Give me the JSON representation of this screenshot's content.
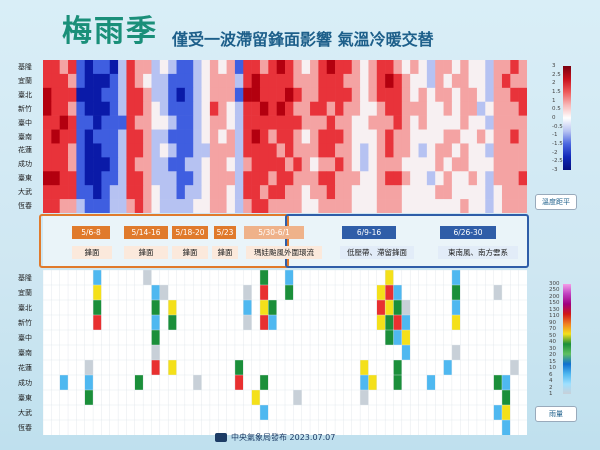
{
  "title": {
    "main": "梅雨季",
    "sub": "僅受一波滯留鋒面影響 氣溫冷暖交替"
  },
  "stations": [
    "基隆",
    "宜蘭",
    "臺北",
    "新竹",
    "臺中",
    "臺南",
    "花蓮",
    "成功",
    "臺東",
    "大武",
    "恆春"
  ],
  "legends": {
    "temp": {
      "label": "溫度距平",
      "ticks": [
        "3",
        "2.5",
        "2",
        "1.5",
        "1",
        "0.5",
        "0",
        "-0.5",
        "-1",
        "-1.5",
        "-2",
        "-2.5",
        "-3"
      ]
    },
    "rain": {
      "label": "雨量",
      "ticks": [
        "300",
        "250",
        "200",
        "150",
        "130",
        "110",
        "90",
        "70",
        "50",
        "40",
        "30",
        "20",
        "15",
        "10",
        "6",
        "4",
        "2",
        "1"
      ]
    }
  },
  "periods": [
    {
      "date": "5/6-8",
      "desc": "鋒面",
      "group": "orange"
    },
    {
      "date": "5/14-16",
      "desc": "鋒面",
      "group": "orange"
    },
    {
      "date": "5/18-20",
      "desc": "鋒面",
      "group": "orange"
    },
    {
      "date": "5/23",
      "desc": "鋒面",
      "group": "orange"
    },
    {
      "date": "5/30-6/1",
      "desc": "瑪娃颱風外圍環流",
      "group": "orange-light"
    },
    {
      "date": "6/9-16",
      "desc": "低壓帶、滯留鋒面",
      "group": "blue"
    },
    {
      "date": "6/26-30",
      "desc": "東南風、南方雲系",
      "group": "blue"
    }
  ],
  "footer": "中央氣象局發布 2023.07.07",
  "colors": {
    "warm": "#d7191c",
    "cold": "#1431c8",
    "orange": "#e07a2c",
    "blue": "#2f5da8",
    "title": "#1a8f79"
  },
  "chart_data": [
    {
      "type": "heatmap",
      "title": "溫度距平",
      "rows": [
        "基隆",
        "宜蘭",
        "臺北",
        "新竹",
        "臺中",
        "臺南",
        "花蓮",
        "成功",
        "臺東",
        "大武",
        "恆春"
      ],
      "columns_note": "daily cells May–June",
      "column_count": 58,
      "value_range": [
        -3,
        3
      ],
      "pattern": [
        [
          2,
          2,
          1,
          2,
          -2,
          -3,
          -2,
          -2,
          -3,
          -1,
          2,
          1,
          1,
          -1,
          0,
          -1,
          -2,
          -2,
          -1,
          0,
          1,
          0,
          1,
          -2,
          2,
          2,
          1,
          2,
          3,
          2,
          1,
          0,
          1,
          2,
          3,
          2,
          2,
          1,
          0,
          1,
          2,
          2,
          1,
          0,
          1,
          0,
          -1,
          1,
          1,
          0,
          1,
          0,
          0,
          -1,
          1,
          1,
          2,
          1
        ],
        [
          2,
          2,
          2,
          1,
          -2,
          -3,
          -3,
          -3,
          -2,
          -1,
          2,
          1,
          0,
          -1,
          -1,
          -2,
          -2,
          -2,
          -1,
          0,
          1,
          1,
          1,
          -1,
          2,
          3,
          2,
          2,
          2,
          2,
          1,
          1,
          1,
          2,
          2,
          2,
          1,
          1,
          0,
          1,
          2,
          3,
          2,
          1,
          0,
          0,
          -1,
          1,
          0,
          1,
          1,
          0,
          0,
          -1,
          1,
          2,
          1,
          1
        ],
        [
          3,
          2,
          2,
          2,
          -3,
          -3,
          -3,
          -2,
          -2,
          -1,
          2,
          2,
          1,
          -1,
          -1,
          -2,
          -3,
          -2,
          -1,
          0,
          1,
          1,
          1,
          -2,
          3,
          3,
          2,
          2,
          2,
          3,
          2,
          1,
          1,
          2,
          2,
          2,
          2,
          1,
          0,
          1,
          2,
          2,
          2,
          1,
          0,
          1,
          0,
          1,
          1,
          0,
          1,
          1,
          0,
          -1,
          1,
          1,
          2,
          2
        ],
        [
          3,
          2,
          2,
          1,
          -2,
          -3,
          -3,
          -3,
          -2,
          -1,
          2,
          2,
          1,
          0,
          -1,
          -2,
          -2,
          -2,
          -1,
          0,
          2,
          1,
          0,
          -1,
          2,
          2,
          3,
          2,
          3,
          2,
          1,
          1,
          2,
          2,
          1,
          2,
          1,
          1,
          0,
          0,
          1,
          2,
          2,
          1,
          1,
          1,
          0,
          0,
          1,
          0,
          1,
          1,
          -1,
          0,
          1,
          1,
          1,
          2
        ],
        [
          2,
          2,
          3,
          2,
          -2,
          -2,
          -3,
          -2,
          -2,
          -2,
          2,
          1,
          1,
          0,
          0,
          -1,
          -2,
          -2,
          -1,
          0,
          1,
          1,
          0,
          -1,
          2,
          2,
          2,
          2,
          2,
          2,
          2,
          1,
          1,
          1,
          2,
          1,
          1,
          0,
          0,
          1,
          1,
          1,
          2,
          1,
          0,
          1,
          0,
          0,
          0,
          0,
          1,
          0,
          0,
          -1,
          1,
          1,
          1,
          1
        ],
        [
          2,
          3,
          2,
          2,
          -2,
          -3,
          -2,
          -2,
          -2,
          -1,
          2,
          2,
          1,
          -1,
          -1,
          -2,
          -2,
          -2,
          -1,
          0,
          1,
          0,
          1,
          -1,
          2,
          3,
          2,
          1,
          2,
          2,
          1,
          0,
          1,
          2,
          2,
          2,
          1,
          0,
          0,
          0,
          1,
          2,
          1,
          1,
          0,
          0,
          0,
          0,
          1,
          1,
          0,
          0,
          1,
          0,
          1,
          1,
          2,
          1
        ],
        [
          2,
          2,
          2,
          1,
          -2,
          -3,
          -3,
          -2,
          -2,
          -1,
          2,
          2,
          1,
          -1,
          0,
          -1,
          -2,
          -2,
          -1,
          -1,
          1,
          1,
          1,
          -1,
          2,
          2,
          2,
          2,
          1,
          2,
          1,
          1,
          1,
          2,
          2,
          1,
          1,
          0,
          -1,
          0,
          1,
          2,
          1,
          1,
          0,
          -1,
          0,
          1,
          1,
          0,
          1,
          0,
          0,
          -1,
          1,
          1,
          1,
          1
        ],
        [
          2,
          2,
          2,
          1,
          -2,
          -3,
          -3,
          -3,
          -2,
          -1,
          2,
          1,
          1,
          -1,
          -1,
          -2,
          -2,
          -1,
          -1,
          0,
          1,
          1,
          0,
          -1,
          1,
          2,
          2,
          2,
          2,
          1,
          2,
          1,
          0,
          1,
          1,
          2,
          1,
          0,
          -1,
          0,
          1,
          1,
          1,
          0,
          0,
          0,
          0,
          1,
          0,
          1,
          1,
          0,
          0,
          0,
          1,
          1,
          1,
          1
        ],
        [
          3,
          3,
          2,
          2,
          -2,
          -3,
          -3,
          -2,
          -2,
          -1,
          2,
          2,
          1,
          -1,
          -1,
          -1,
          -2,
          -2,
          -1,
          0,
          1,
          1,
          1,
          -1,
          2,
          2,
          2,
          1,
          2,
          2,
          1,
          1,
          1,
          2,
          2,
          1,
          1,
          1,
          0,
          0,
          1,
          2,
          2,
          1,
          0,
          0,
          -1,
          0,
          1,
          0,
          0,
          1,
          0,
          -1,
          1,
          1,
          1,
          2
        ],
        [
          2,
          2,
          2,
          2,
          -2,
          -2,
          -3,
          -2,
          -1,
          -1,
          2,
          2,
          1,
          0,
          -1,
          -1,
          -2,
          -1,
          -1,
          0,
          1,
          1,
          0,
          -1,
          2,
          2,
          1,
          2,
          2,
          1,
          1,
          0,
          1,
          1,
          2,
          1,
          1,
          0,
          0,
          0,
          1,
          1,
          1,
          0,
          0,
          0,
          0,
          1,
          1,
          0,
          0,
          0,
          0,
          -1,
          0,
          1,
          1,
          1
        ],
        [
          2,
          2,
          1,
          1,
          -1,
          -2,
          -2,
          -2,
          -1,
          -1,
          1,
          2,
          1,
          0,
          -1,
          -1,
          -1,
          -1,
          0,
          0,
          1,
          1,
          0,
          -1,
          1,
          2,
          2,
          1,
          1,
          1,
          1,
          0,
          0,
          1,
          1,
          1,
          1,
          0,
          0,
          0,
          1,
          1,
          1,
          0,
          0,
          0,
          0,
          0,
          0,
          0,
          1,
          0,
          0,
          -1,
          0,
          1,
          1,
          1
        ]
      ]
    },
    {
      "type": "heatmap",
      "title": "雨量",
      "rows": [
        "基隆",
        "宜蘭",
        "臺北",
        "新竹",
        "臺中",
        "臺南",
        "花蓮",
        "成功",
        "臺東",
        "大武",
        "恆春"
      ],
      "column_count": 58,
      "value_range": [
        0,
        300
      ],
      "pattern_note": "rain categories per cell (0 = none)",
      "pattern": [
        [
          0,
          0,
          0,
          0,
          0,
          0,
          3,
          0,
          0,
          0,
          0,
          0,
          2,
          0,
          0,
          0,
          0,
          0,
          0,
          0,
          0,
          0,
          0,
          0,
          0,
          0,
          4,
          0,
          0,
          3,
          0,
          0,
          0,
          0,
          0,
          0,
          0,
          0,
          0,
          0,
          0,
          5,
          0,
          0,
          0,
          0,
          0,
          0,
          0,
          3,
          0,
          0,
          0,
          0,
          0,
          0,
          0,
          0
        ],
        [
          0,
          0,
          0,
          0,
          0,
          0,
          5,
          0,
          0,
          0,
          0,
          0,
          0,
          3,
          2,
          0,
          0,
          0,
          0,
          0,
          0,
          0,
          0,
          0,
          2,
          0,
          6,
          0,
          0,
          4,
          0,
          0,
          0,
          0,
          0,
          0,
          0,
          0,
          0,
          0,
          5,
          6,
          3,
          0,
          0,
          0,
          0,
          0,
          0,
          4,
          0,
          0,
          0,
          0,
          2,
          0,
          0,
          0
        ],
        [
          0,
          0,
          0,
          0,
          0,
          0,
          4,
          0,
          0,
          0,
          0,
          0,
          0,
          4,
          0,
          5,
          0,
          0,
          0,
          0,
          0,
          0,
          0,
          0,
          3,
          0,
          5,
          4,
          0,
          0,
          0,
          0,
          0,
          0,
          0,
          0,
          0,
          0,
          0,
          0,
          6,
          5,
          4,
          2,
          0,
          0,
          0,
          0,
          0,
          3,
          0,
          0,
          0,
          0,
          0,
          0,
          0,
          0
        ],
        [
          0,
          0,
          0,
          0,
          0,
          0,
          6,
          0,
          0,
          0,
          0,
          0,
          0,
          3,
          0,
          4,
          0,
          0,
          0,
          0,
          0,
          0,
          0,
          0,
          2,
          0,
          6,
          3,
          0,
          0,
          0,
          0,
          0,
          0,
          0,
          0,
          0,
          0,
          0,
          0,
          5,
          4,
          6,
          3,
          0,
          0,
          0,
          0,
          0,
          5,
          0,
          0,
          0,
          0,
          0,
          0,
          0,
          0
        ],
        [
          0,
          0,
          0,
          0,
          0,
          0,
          0,
          0,
          0,
          0,
          0,
          0,
          0,
          4,
          0,
          0,
          0,
          0,
          0,
          0,
          0,
          0,
          0,
          0,
          0,
          0,
          0,
          0,
          0,
          0,
          0,
          0,
          0,
          0,
          0,
          0,
          0,
          0,
          0,
          0,
          0,
          4,
          3,
          5,
          0,
          0,
          0,
          0,
          0,
          0,
          0,
          0,
          0,
          0,
          0,
          0,
          0,
          0
        ],
        [
          0,
          0,
          0,
          0,
          0,
          0,
          0,
          0,
          0,
          0,
          0,
          0,
          0,
          2,
          0,
          0,
          0,
          0,
          0,
          0,
          0,
          0,
          0,
          0,
          0,
          0,
          0,
          0,
          0,
          0,
          0,
          0,
          0,
          0,
          0,
          0,
          0,
          0,
          0,
          0,
          0,
          0,
          0,
          3,
          0,
          0,
          0,
          0,
          0,
          2,
          0,
          0,
          0,
          0,
          0,
          0,
          0,
          0
        ],
        [
          0,
          0,
          0,
          0,
          0,
          2,
          0,
          0,
          0,
          0,
          0,
          0,
          0,
          6,
          0,
          5,
          0,
          0,
          0,
          0,
          0,
          0,
          0,
          4,
          0,
          0,
          0,
          0,
          0,
          0,
          0,
          0,
          0,
          0,
          0,
          0,
          0,
          0,
          5,
          0,
          0,
          0,
          4,
          0,
          0,
          0,
          0,
          0,
          3,
          0,
          0,
          0,
          0,
          0,
          0,
          0,
          2,
          0
        ],
        [
          0,
          0,
          3,
          0,
          0,
          3,
          0,
          0,
          0,
          0,
          0,
          4,
          0,
          0,
          0,
          0,
          0,
          0,
          2,
          0,
          0,
          0,
          0,
          6,
          0,
          0,
          4,
          0,
          0,
          0,
          0,
          0,
          0,
          0,
          0,
          0,
          0,
          0,
          3,
          5,
          0,
          0,
          4,
          0,
          0,
          0,
          3,
          0,
          0,
          0,
          0,
          0,
          0,
          0,
          4,
          3,
          0,
          0
        ],
        [
          0,
          0,
          0,
          0,
          0,
          4,
          0,
          0,
          0,
          0,
          0,
          0,
          0,
          0,
          0,
          0,
          0,
          0,
          0,
          0,
          0,
          0,
          0,
          0,
          0,
          5,
          0,
          0,
          0,
          0,
          2,
          0,
          0,
          0,
          0,
          0,
          0,
          0,
          2,
          0,
          0,
          0,
          0,
          0,
          0,
          0,
          0,
          0,
          0,
          0,
          0,
          0,
          0,
          0,
          0,
          4,
          0,
          0
        ],
        [
          0,
          0,
          0,
          0,
          0,
          0,
          0,
          0,
          0,
          0,
          0,
          0,
          0,
          0,
          0,
          0,
          0,
          0,
          0,
          0,
          0,
          0,
          0,
          0,
          0,
          0,
          3,
          0,
          0,
          0,
          0,
          0,
          0,
          0,
          0,
          0,
          0,
          0,
          0,
          0,
          0,
          0,
          0,
          0,
          0,
          0,
          0,
          0,
          0,
          0,
          0,
          0,
          0,
          0,
          3,
          5,
          0,
          0
        ],
        [
          0,
          0,
          0,
          0,
          0,
          0,
          0,
          0,
          0,
          0,
          0,
          0,
          0,
          0,
          0,
          0,
          0,
          0,
          0,
          0,
          0,
          0,
          0,
          0,
          0,
          0,
          0,
          0,
          0,
          0,
          0,
          0,
          0,
          0,
          0,
          0,
          0,
          0,
          0,
          0,
          0,
          0,
          0,
          0,
          0,
          0,
          0,
          0,
          0,
          0,
          0,
          0,
          0,
          0,
          0,
          3,
          0,
          0
        ]
      ]
    }
  ]
}
